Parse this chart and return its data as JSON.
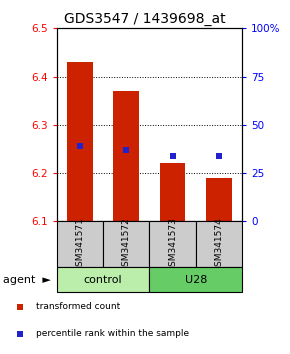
{
  "title": "GDS3547 / 1439698_at",
  "samples": [
    "GSM341571",
    "GSM341572",
    "GSM341573",
    "GSM341574"
  ],
  "bar_values": [
    6.43,
    6.37,
    6.22,
    6.19
  ],
  "bar_bottom": 6.1,
  "percentile_values": [
    6.255,
    6.248,
    6.235,
    6.235
  ],
  "ylim": [
    6.1,
    6.5
  ],
  "yticks": [
    6.1,
    6.2,
    6.3,
    6.4,
    6.5
  ],
  "y2lim": [
    0,
    100
  ],
  "y2ticks": [
    0,
    25,
    50,
    75,
    100
  ],
  "y2ticklabels": [
    "0",
    "25",
    "50",
    "75",
    "100%"
  ],
  "bar_color": "#cc2200",
  "percentile_color": "#2222cc",
  "groups": [
    {
      "label": "control",
      "indices": [
        0,
        1
      ],
      "color": "#bbeeaa"
    },
    {
      "label": "U28",
      "indices": [
        2,
        3
      ],
      "color": "#66cc66"
    }
  ],
  "legend": [
    {
      "label": "transformed count",
      "color": "#cc2200"
    },
    {
      "label": "percentile rank within the sample",
      "color": "#2222cc"
    }
  ],
  "sample_box_color": "#cccccc",
  "bar_width": 0.55,
  "title_fontsize": 10,
  "tick_fontsize": 7.5,
  "sample_fontsize": 6.5,
  "group_fontsize": 8,
  "legend_fontsize": 6.5,
  "agent_fontsize": 8
}
